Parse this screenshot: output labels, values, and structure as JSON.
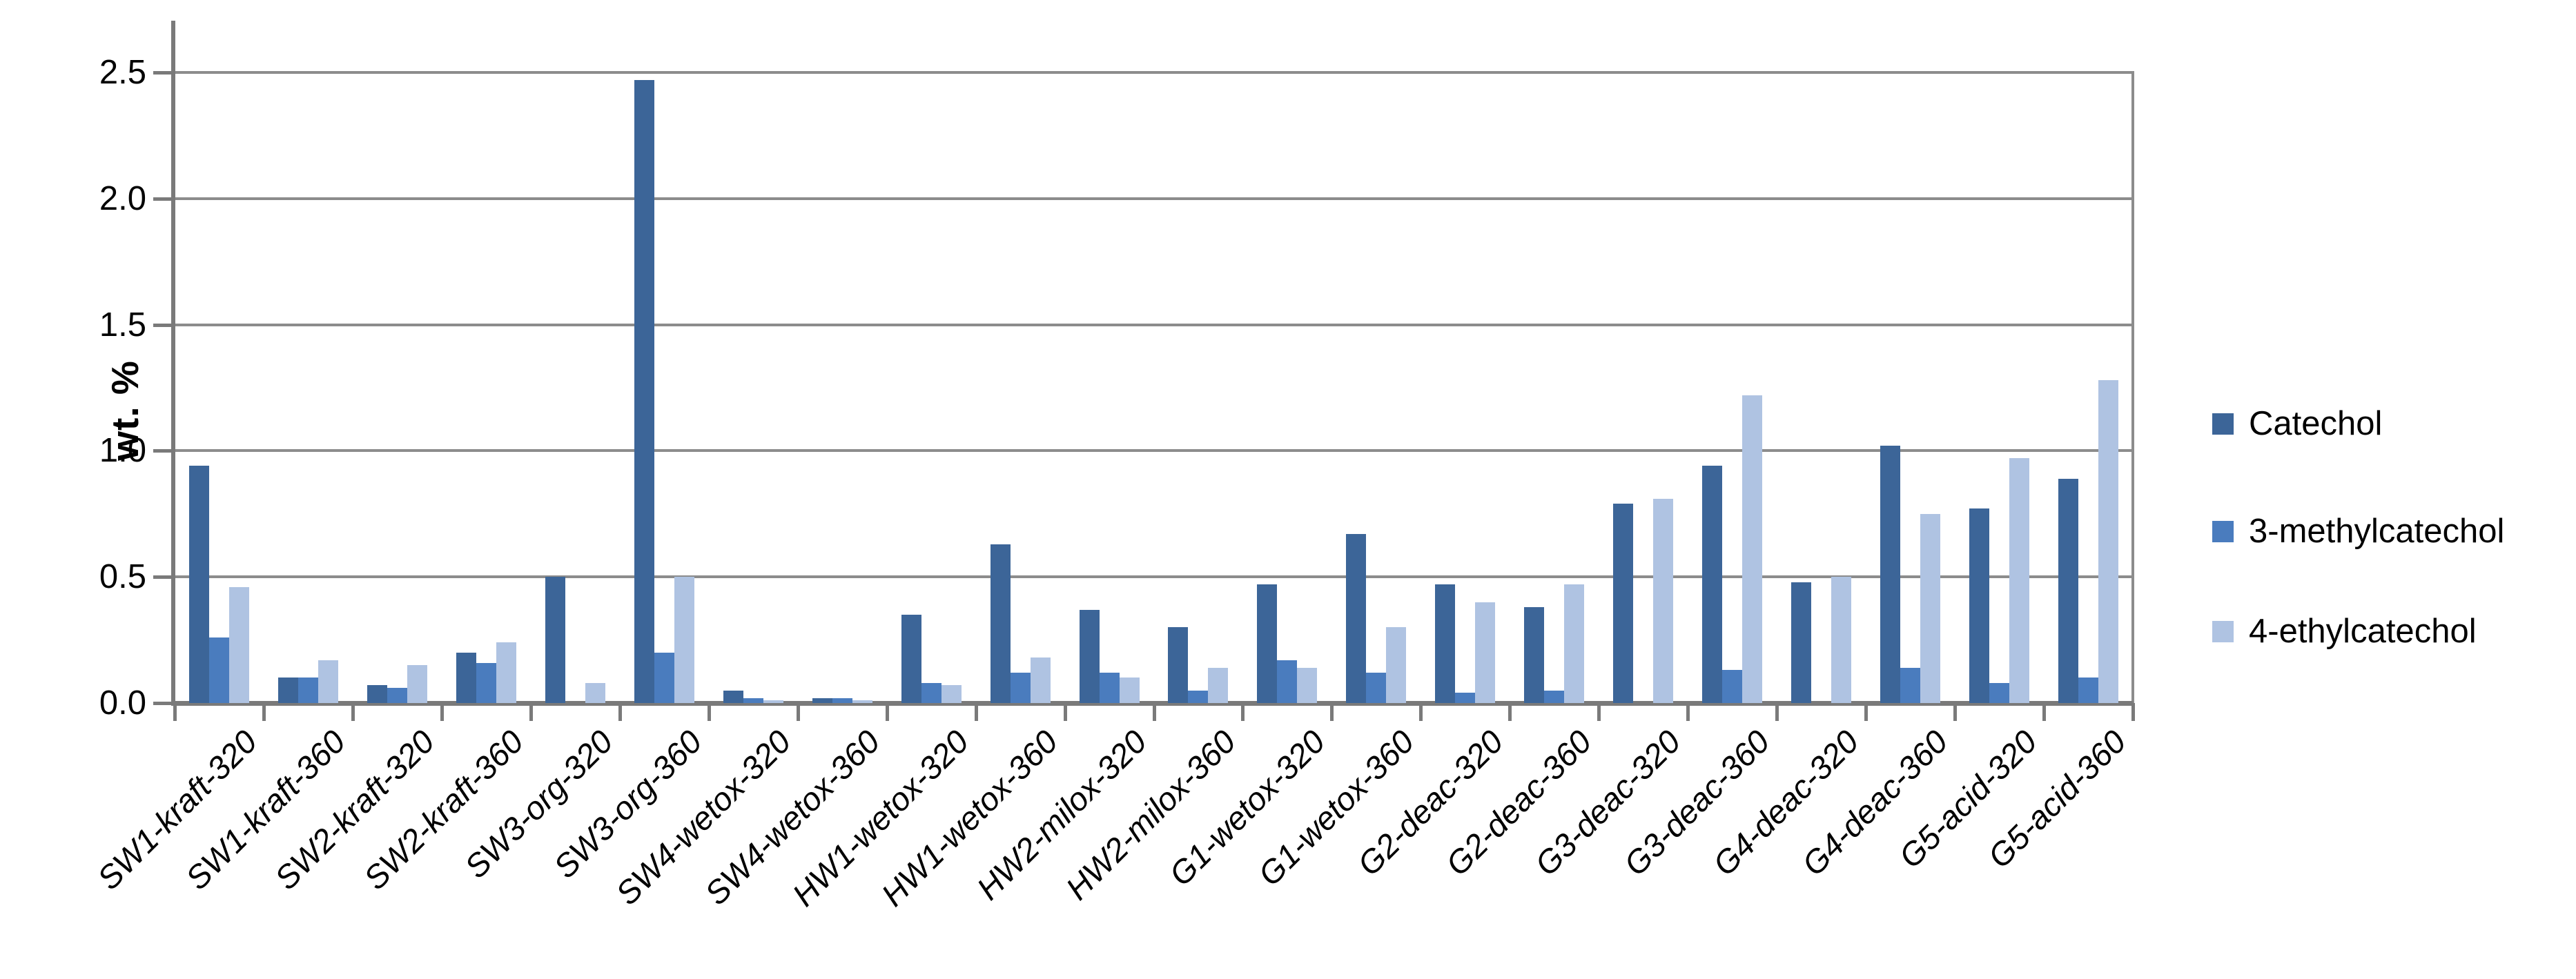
{
  "chart_data": {
    "type": "bar",
    "title": "",
    "ylabel": "wt. %",
    "xlabel": "",
    "ylim": [
      0,
      2.7
    ],
    "ytick_step": 0.5,
    "yticks": [
      "0.0",
      "0.5",
      "1.0",
      "1.5",
      "2.0",
      "2.5"
    ],
    "grid": true,
    "legend_position": "right",
    "categories": [
      "SW1-kraft-320",
      "SW1-kraft-360",
      "SW2-kraft-320",
      "SW2-kraft-360",
      "SW3-org-320",
      "SW3-org-360",
      "SW4-wetox-320",
      "SW4-wetox-360",
      "HW1-wetox-320",
      "HW1-wetox-360",
      "HW2-milox-320",
      "HW2-milox-360",
      "G1-wetox-320",
      "G1-wetox-360",
      "G2-deac-320",
      "G2-deac-360",
      "G3-deac-320",
      "G3-deac-360",
      "G4-deac-320",
      "G4-deac-360",
      "G5-acid-320",
      "G5-acid-360"
    ],
    "series": [
      {
        "name": "Catechol",
        "color": "#3C6598",
        "values": [
          0.94,
          0.1,
          0.07,
          0.2,
          0.5,
          2.47,
          0.05,
          0.02,
          0.35,
          0.63,
          0.37,
          0.3,
          0.47,
          0.67,
          0.47,
          0.38,
          0.79,
          0.94,
          0.48,
          1.02,
          0.77,
          0.89
        ]
      },
      {
        "name": "3-methylcatechol",
        "color": "#4A7CBE",
        "values": [
          0.26,
          0.1,
          0.06,
          0.16,
          0.0,
          0.2,
          0.02,
          0.02,
          0.08,
          0.12,
          0.12,
          0.05,
          0.17,
          0.12,
          0.04,
          0.05,
          0.0,
          0.13,
          0.0,
          0.14,
          0.08,
          0.1
        ]
      },
      {
        "name": "4-ethylcatechol",
        "color": "#AFC3E2",
        "values": [
          0.46,
          0.17,
          0.15,
          0.24,
          0.08,
          0.5,
          0.01,
          0.01,
          0.07,
          0.18,
          0.1,
          0.14,
          0.14,
          0.3,
          0.4,
          0.47,
          0.81,
          1.22,
          0.5,
          0.75,
          0.97,
          1.28
        ]
      }
    ]
  },
  "colors": {
    "background": "#FFFFFF",
    "gridline": "#8C8C8C",
    "axis": "#7A7A7A",
    "text": "#000000"
  }
}
